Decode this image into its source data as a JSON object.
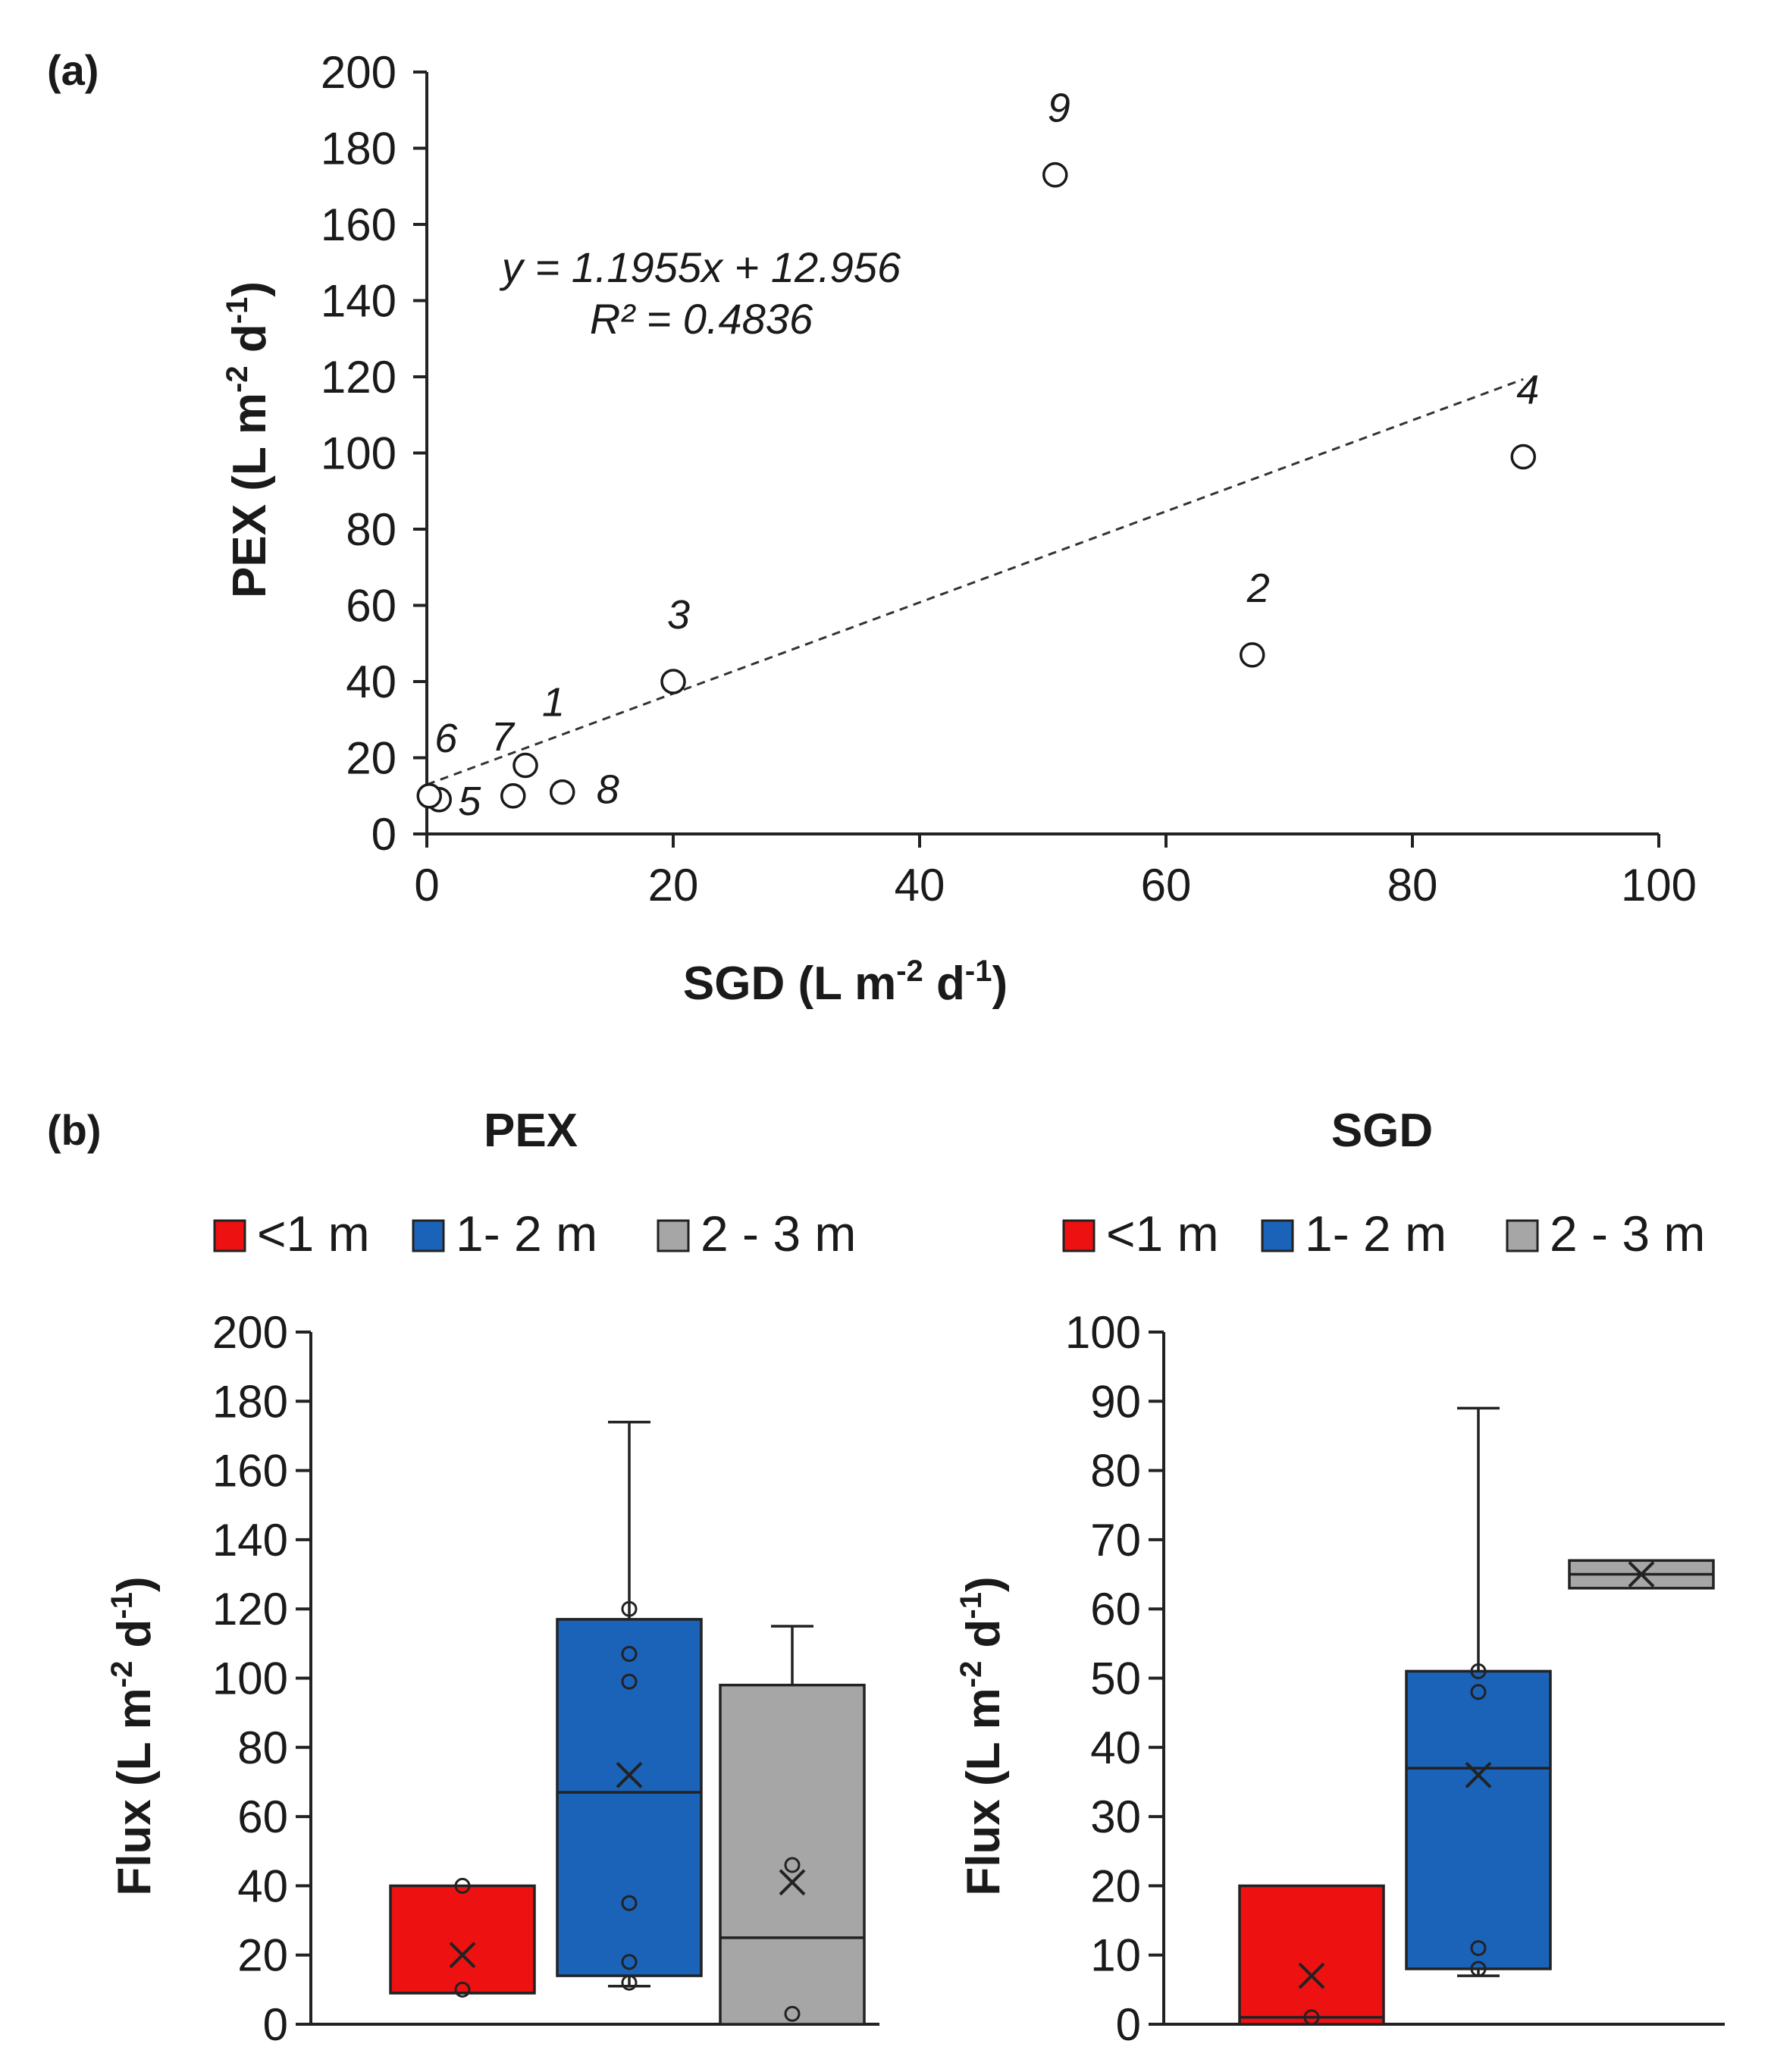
{
  "chart_data": [
    {
      "panel": "(a)",
      "type": "scatter",
      "xlabel": "SGD (L m",
      "xlabel_sup1": "-2",
      "xlabel_mid": " d",
      "xlabel_sup2": "-1",
      "xlabel_end": ")",
      "ylabel": "PEX (L m",
      "ylabel_sup1": "-2",
      "ylabel_mid": " d",
      "ylabel_sup2": "-1",
      "ylabel_end": ")",
      "xlim": [
        0,
        100
      ],
      "ylim": [
        0,
        200
      ],
      "xticks": [
        0,
        20,
        40,
        60,
        80,
        100
      ],
      "yticks": [
        0,
        20,
        40,
        60,
        80,
        100,
        120,
        140,
        160,
        180,
        200
      ],
      "points": [
        {
          "label": "1",
          "x": 8,
          "y": 18
        },
        {
          "label": "2",
          "x": 67,
          "y": 47
        },
        {
          "label": "3",
          "x": 20,
          "y": 40
        },
        {
          "label": "4",
          "x": 89,
          "y": 99
        },
        {
          "label": "5",
          "x": 1,
          "y": 9
        },
        {
          "label": "6",
          "x": 0.2,
          "y": 10
        },
        {
          "label": "7",
          "x": 7,
          "y": 10
        },
        {
          "label": "8",
          "x": 11,
          "y": 11
        },
        {
          "label": "9",
          "x": 51,
          "y": 173
        }
      ],
      "trendline": {
        "slope": 1.1955,
        "intercept": 12.956,
        "x_range": [
          0,
          89
        ],
        "style": "dashed"
      },
      "equation": "y = 1.1955x + 12.956",
      "r2_text": "R² = 0.4836"
    },
    {
      "panel": "(b)",
      "type": "box",
      "title": "PEX",
      "ylabel": "Flux (L m",
      "ylabel_sup1": "-2",
      "ylabel_mid": " d",
      "ylabel_sup2": "-1",
      "ylabel_end": ")",
      "ylim": [
        0,
        200
      ],
      "yticks": [
        0,
        20,
        40,
        60,
        80,
        100,
        120,
        140,
        160,
        180,
        200
      ],
      "legend": [
        "<1 m",
        "1- 2 m",
        "2 - 3 m"
      ],
      "groups": [
        {
          "name": "<1 m",
          "color": "#ee1111",
          "whisker_low": 9,
          "q1": 9,
          "median": 9,
          "q3": 40,
          "whisker_high": 40,
          "mean": 20,
          "points": [
            10,
            40
          ]
        },
        {
          "name": "1- 2 m",
          "color": "#1a63b8",
          "whisker_low": 11,
          "q1": 14,
          "median": 67,
          "q3": 117,
          "whisker_high": 174,
          "mean": 72,
          "points": [
            12,
            18,
            35,
            99,
            107,
            120
          ]
        },
        {
          "name": "2 - 3 m",
          "color": "#a6a6a6",
          "whisker_low": 0,
          "q1": 0,
          "median": 25,
          "q3": 98,
          "whisker_high": 115,
          "mean": 41,
          "points": [
            3,
            46
          ]
        }
      ]
    },
    {
      "panel": "(b)",
      "type": "box",
      "title": "SGD",
      "ylabel": "Flux (L m",
      "ylabel_sup1": "-2",
      "ylabel_mid": " d",
      "ylabel_sup2": "-1",
      "ylabel_end": ")",
      "ylim": [
        0,
        100
      ],
      "yticks": [
        0,
        10,
        20,
        30,
        40,
        50,
        60,
        70,
        80,
        90,
        100
      ],
      "legend": [
        "<1 m",
        "1- 2 m",
        "2 - 3 m"
      ],
      "groups": [
        {
          "name": "<1 m",
          "color": "#ee1111",
          "whisker_low": 0,
          "q1": 0,
          "median": 1,
          "q3": 20,
          "whisker_high": 20,
          "mean": 7,
          "points": [
            1
          ]
        },
        {
          "name": "1- 2 m",
          "color": "#1a63b8",
          "whisker_low": 7,
          "q1": 8,
          "median": 37,
          "q3": 51,
          "whisker_high": 89,
          "mean": 36,
          "points": [
            8,
            11,
            48,
            51
          ]
        },
        {
          "name": "2 - 3 m",
          "color": "#a6a6a6",
          "whisker_low": 63,
          "q1": 63,
          "median": 65,
          "q3": 67,
          "whisker_high": 67,
          "mean": 65,
          "points": []
        }
      ]
    }
  ]
}
